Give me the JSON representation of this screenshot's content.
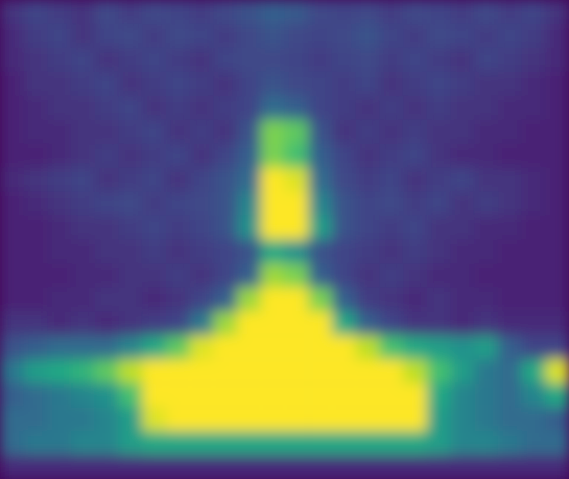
{
  "chart_data": {
    "type": "heatmap",
    "color": "viridis",
    "zlim": [
      0,
      1
    ],
    "tick_labels": false,
    "cells": [
      [
        0.15,
        0.2,
        0.18,
        0.15,
        0.22,
        0.18,
        0.22,
        0.2,
        0.18,
        0.22,
        0.25,
        0.3,
        0.28,
        0.22,
        0.2,
        0.22,
        0.18,
        0.22,
        0.2,
        0.18,
        0.22,
        0.18,
        0.2,
        0.15
      ],
      [
        0.12,
        0.18,
        0.2,
        0.15,
        0.2,
        0.22,
        0.18,
        0.22,
        0.2,
        0.18,
        0.22,
        0.25,
        0.22,
        0.2,
        0.22,
        0.25,
        0.2,
        0.18,
        0.22,
        0.2,
        0.18,
        0.2,
        0.18,
        0.12
      ],
      [
        0.12,
        0.15,
        0.18,
        0.2,
        0.15,
        0.18,
        0.2,
        0.18,
        0.15,
        0.2,
        0.22,
        0.22,
        0.2,
        0.18,
        0.2,
        0.22,
        0.18,
        0.2,
        0.18,
        0.15,
        0.2,
        0.18,
        0.15,
        0.12
      ],
      [
        0.1,
        0.15,
        0.15,
        0.18,
        0.2,
        0.15,
        0.18,
        0.2,
        0.18,
        0.15,
        0.2,
        0.25,
        0.22,
        0.2,
        0.18,
        0.2,
        0.15,
        0.18,
        0.2,
        0.18,
        0.15,
        0.15,
        0.12,
        0.1
      ],
      [
        0.1,
        0.12,
        0.15,
        0.15,
        0.18,
        0.2,
        0.15,
        0.18,
        0.15,
        0.18,
        0.2,
        0.35,
        0.3,
        0.2,
        0.18,
        0.15,
        0.18,
        0.15,
        0.18,
        0.15,
        0.15,
        0.12,
        0.12,
        0.1
      ],
      [
        0.1,
        0.12,
        0.12,
        0.15,
        0.15,
        0.18,
        0.2,
        0.15,
        0.18,
        0.15,
        0.25,
        0.8,
        0.75,
        0.25,
        0.15,
        0.18,
        0.15,
        0.18,
        0.15,
        0.15,
        0.12,
        0.12,
        0.1,
        0.1
      ],
      [
        0.1,
        0.1,
        0.12,
        0.15,
        0.18,
        0.15,
        0.18,
        0.2,
        0.15,
        0.2,
        0.3,
        0.8,
        0.7,
        0.3,
        0.2,
        0.15,
        0.18,
        0.2,
        0.15,
        0.12,
        0.12,
        0.1,
        0.1,
        0.1
      ],
      [
        0.12,
        0.15,
        0.18,
        0.2,
        0.15,
        0.18,
        0.2,
        0.15,
        0.2,
        0.25,
        0.35,
        1,
        0.95,
        0.35,
        0.22,
        0.18,
        0.2,
        0.15,
        0.18,
        0.2,
        0.15,
        0.15,
        0.12,
        0.1
      ],
      [
        0.1,
        0.12,
        0.15,
        0.18,
        0.2,
        0.22,
        0.18,
        0.2,
        0.22,
        0.25,
        0.45,
        1,
        1,
        0.45,
        0.25,
        0.2,
        0.22,
        0.18,
        0.2,
        0.15,
        0.18,
        0.15,
        0.12,
        0.1
      ],
      [
        0.1,
        0.1,
        0.12,
        0.15,
        0.15,
        0.18,
        0.2,
        0.18,
        0.2,
        0.25,
        0.5,
        1,
        1,
        0.55,
        0.25,
        0.2,
        0.18,
        0.2,
        0.15,
        0.15,
        0.12,
        0.12,
        0.1,
        0.1
      ],
      [
        0.1,
        0.1,
        0.12,
        0.12,
        0.15,
        0.15,
        0.18,
        0.15,
        0.18,
        0.2,
        0.25,
        0.6,
        0.5,
        0.25,
        0.2,
        0.18,
        0.15,
        0.18,
        0.15,
        0.12,
        0.12,
        0.1,
        0.1,
        0.1
      ],
      [
        0.1,
        0.1,
        0.1,
        0.12,
        0.12,
        0.15,
        0.15,
        0.18,
        0.15,
        0.2,
        0.3,
        0.85,
        0.8,
        0.3,
        0.2,
        0.15,
        0.18,
        0.15,
        0.12,
        0.12,
        0.1,
        0.1,
        0.1,
        0.1
      ],
      [
        0.1,
        0.1,
        0.12,
        0.12,
        0.15,
        0.15,
        0.12,
        0.15,
        0.2,
        0.3,
        0.85,
        1,
        1,
        0.8,
        0.3,
        0.18,
        0.15,
        0.12,
        0.15,
        0.12,
        0.12,
        0.1,
        0.1,
        0.1
      ],
      [
        0.15,
        0.15,
        0.12,
        0.15,
        0.12,
        0.15,
        0.18,
        0.2,
        0.4,
        0.85,
        1,
        1,
        1,
        1,
        0.6,
        0.3,
        0.2,
        0.15,
        0.15,
        0.12,
        0.15,
        0.12,
        0.12,
        0.12
      ],
      [
        0.25,
        0.3,
        0.35,
        0.35,
        0.35,
        0.45,
        0.6,
        0.75,
        0.95,
        1,
        1,
        1,
        1,
        1,
        1,
        0.9,
        0.7,
        0.6,
        0.55,
        0.5,
        0.55,
        0.3,
        0.2,
        0.2
      ],
      [
        0.4,
        0.55,
        0.6,
        0.65,
        0.75,
        0.9,
        1,
        1,
        1,
        1,
        1,
        1,
        1,
        1,
        1,
        1,
        1,
        0.9,
        0.7,
        0.55,
        0.4,
        0.35,
        0.6,
        0.95
      ],
      [
        0.3,
        0.35,
        0.4,
        0.45,
        0.5,
        0.7,
        1,
        1,
        1,
        1,
        1,
        1,
        1,
        1,
        1,
        1,
        1,
        1,
        0.6,
        0.45,
        0.4,
        0.35,
        0.45,
        0.6
      ],
      [
        0.35,
        0.35,
        0.4,
        0.4,
        0.45,
        0.55,
        0.95,
        1,
        1,
        1,
        1,
        1,
        1,
        1,
        1,
        1,
        1,
        1,
        0.55,
        0.45,
        0.4,
        0.35,
        0.35,
        0.3
      ],
      [
        0.35,
        0.4,
        0.4,
        0.45,
        0.45,
        0.55,
        0.6,
        0.6,
        0.6,
        0.6,
        0.6,
        0.6,
        0.6,
        0.6,
        0.6,
        0.6,
        0.6,
        0.6,
        0.55,
        0.45,
        0.45,
        0.4,
        0.35,
        0.35
      ],
      [
        0.12,
        0.12,
        0.12,
        0.12,
        0.12,
        0.12,
        0.12,
        0.12,
        0.12,
        0.12,
        0.12,
        0.12,
        0.12,
        0.12,
        0.12,
        0.12,
        0.12,
        0.12,
        0.12,
        0.12,
        0.12,
        0.12,
        0.12,
        0.12
      ]
    ]
  }
}
